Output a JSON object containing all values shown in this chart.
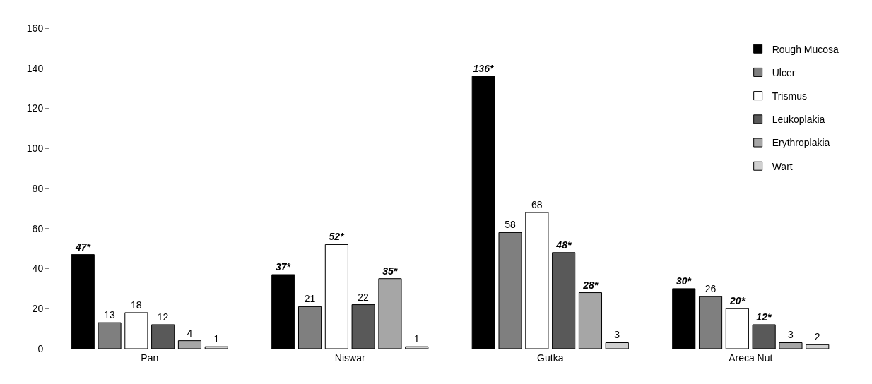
{
  "chart_data": {
    "type": "bar",
    "categories": [
      "Pan",
      "Niswar",
      "Gutka",
      "Areca Nut"
    ],
    "series": [
      {
        "name": "Rough Mucosa",
        "color": "#000000",
        "values": [
          47,
          37,
          136,
          30
        ],
        "value_labels": [
          "47*",
          "37*",
          "136*",
          "30*"
        ]
      },
      {
        "name": "Ulcer",
        "color": "#7f7f7f",
        "values": [
          13,
          21,
          58,
          26
        ],
        "value_labels": [
          "13",
          "21",
          "58",
          "26"
        ]
      },
      {
        "name": "Trismus",
        "color": "#ffffff",
        "values": [
          18,
          52,
          68,
          20
        ],
        "value_labels": [
          "18",
          "52*",
          "68",
          "20*"
        ]
      },
      {
        "name": "Leukoplakia",
        "color": "#595959",
        "values": [
          12,
          22,
          48,
          12
        ],
        "value_labels": [
          "12",
          "22",
          "48*",
          "12*"
        ]
      },
      {
        "name": "Erythroplakia",
        "color": "#a6a6a6",
        "values": [
          4,
          35,
          28,
          3
        ],
        "value_labels": [
          "4",
          "35*",
          "28*",
          "3"
        ]
      },
      {
        "name": "Wart",
        "color": "#d0d0d0",
        "values": [
          1,
          1,
          3,
          2
        ],
        "value_labels": [
          "1",
          "1",
          "3",
          "2"
        ]
      }
    ],
    "ylim": [
      0,
      160
    ],
    "yticks": [
      0,
      20,
      40,
      60,
      80,
      100,
      120,
      140,
      160
    ],
    "grid": false,
    "legend": "top right"
  }
}
